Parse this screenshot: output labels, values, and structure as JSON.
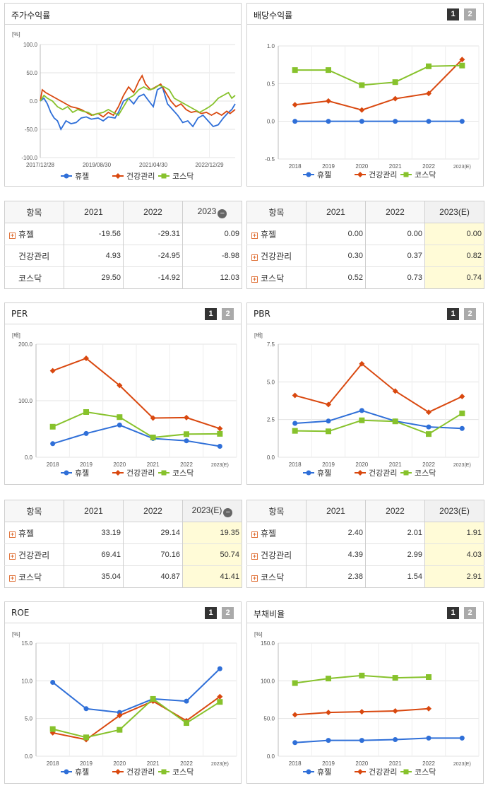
{
  "legend": [
    "휴젤",
    "건강관리",
    "코스닥"
  ],
  "colors": [
    "#2f6fd8",
    "#d9480f",
    "#87c22c"
  ],
  "panels": {
    "stock": {
      "title": "주가수익률"
    },
    "dividend": {
      "title": "배당수익률",
      "pages": [
        "1",
        "2"
      ]
    },
    "per": {
      "title": "PER",
      "pages": [
        "1",
        "2"
      ]
    },
    "pbr": {
      "title": "PBR",
      "pages": [
        "1",
        "2"
      ]
    },
    "roe": {
      "title": "ROE",
      "pages": [
        "1",
        "2"
      ]
    },
    "debt": {
      "title": "부채비율",
      "pages": [
        "1",
        "2"
      ]
    }
  },
  "tables": {
    "stock": {
      "header": [
        "항목",
        "2021",
        "2022",
        "2023"
      ],
      "minus": "−",
      "rows": [
        {
          "name": "휴젤",
          "plus": "+",
          "values": [
            "-19.56",
            "-29.31",
            "0.09"
          ]
        },
        {
          "name": "건강관리",
          "plus": "",
          "values": [
            "4.93",
            "-24.95",
            "-8.98"
          ]
        },
        {
          "name": "코스닥",
          "plus": "",
          "values": [
            "29.50",
            "-14.92",
            "12.03"
          ]
        }
      ]
    },
    "dividend": {
      "header": [
        "항목",
        "2021",
        "2022",
        "2023(E)"
      ],
      "rows": [
        {
          "name": "휴젤",
          "plus": "+",
          "values": [
            "0.00",
            "0.00",
            "0.00"
          ]
        },
        {
          "name": "건강관리",
          "plus": "+",
          "values": [
            "0.30",
            "0.37",
            "0.82"
          ]
        },
        {
          "name": "코스닥",
          "plus": "+",
          "values": [
            "0.52",
            "0.73",
            "0.74"
          ]
        }
      ]
    },
    "per": {
      "header": [
        "항목",
        "2021",
        "2022",
        "2023(E)"
      ],
      "minus": "−",
      "rows": [
        {
          "name": "휴젤",
          "plus": "+",
          "values": [
            "33.19",
            "29.14",
            "19.35"
          ]
        },
        {
          "name": "건강관리",
          "plus": "+",
          "values": [
            "69.41",
            "70.16",
            "50.74"
          ]
        },
        {
          "name": "코스닥",
          "plus": "+",
          "values": [
            "35.04",
            "40.87",
            "41.41"
          ]
        }
      ]
    },
    "pbr": {
      "header": [
        "항목",
        "2021",
        "2022",
        "2023(E)"
      ],
      "rows": [
        {
          "name": "휴젤",
          "plus": "+",
          "values": [
            "2.40",
            "2.01",
            "1.91"
          ]
        },
        {
          "name": "건강관리",
          "plus": "+",
          "values": [
            "4.39",
            "2.99",
            "4.03"
          ]
        },
        {
          "name": "코스닥",
          "plus": "+",
          "values": [
            "2.38",
            "1.54",
            "2.91"
          ]
        }
      ]
    }
  },
  "chart_data": [
    {
      "id": "stock",
      "type": "line",
      "title": "주가수익률",
      "ylabel": "[%]",
      "ylim": [
        -100,
        100
      ],
      "yticks": [
        "100.0",
        "50.0",
        "0.0",
        "-50.0",
        "-100.0"
      ],
      "xticks": [
        "2017/12/28",
        "2019/08/30",
        "2021/04/30",
        "2022/12/29"
      ],
      "x_span_years": [
        2017.99,
        2023.75
      ],
      "xtick_years": [
        2017.99,
        2019.66,
        2021.33,
        2022.99
      ],
      "series": [
        {
          "name": "휴젤",
          "points": [
            [
              2017.99,
              0
            ],
            [
              2018.1,
              5
            ],
            [
              2018.2,
              -5
            ],
            [
              2018.3,
              -20
            ],
            [
              2018.4,
              -30
            ],
            [
              2018.5,
              -35
            ],
            [
              2018.6,
              -50
            ],
            [
              2018.75,
              -35
            ],
            [
              2018.9,
              -40
            ],
            [
              2019.05,
              -38
            ],
            [
              2019.2,
              -30
            ],
            [
              2019.35,
              -28
            ],
            [
              2019.5,
              -32
            ],
            [
              2019.7,
              -30
            ],
            [
              2019.85,
              -35
            ],
            [
              2020.0,
              -28
            ],
            [
              2020.2,
              -30
            ],
            [
              2020.3,
              -20
            ],
            [
              2020.45,
              0
            ],
            [
              2020.6,
              5
            ],
            [
              2020.75,
              -5
            ],
            [
              2020.9,
              8
            ],
            [
              2021.05,
              12
            ],
            [
              2021.2,
              0
            ],
            [
              2021.33,
              -10
            ],
            [
              2021.45,
              20
            ],
            [
              2021.6,
              25
            ],
            [
              2021.75,
              -5
            ],
            [
              2021.9,
              -15
            ],
            [
              2022.05,
              -25
            ],
            [
              2022.2,
              -38
            ],
            [
              2022.35,
              -35
            ],
            [
              2022.5,
              -45
            ],
            [
              2022.65,
              -30
            ],
            [
              2022.8,
              -25
            ],
            [
              2022.95,
              -35
            ],
            [
              2023.1,
              -45
            ],
            [
              2023.25,
              -42
            ],
            [
              2023.4,
              -30
            ],
            [
              2023.55,
              -20
            ],
            [
              2023.65,
              -15
            ],
            [
              2023.75,
              -5
            ]
          ]
        },
        {
          "name": "건강관리",
          "points": [
            [
              2017.99,
              0
            ],
            [
              2018.05,
              20
            ],
            [
              2018.15,
              15
            ],
            [
              2018.3,
              10
            ],
            [
              2018.45,
              5
            ],
            [
              2018.6,
              0
            ],
            [
              2018.75,
              -5
            ],
            [
              2018.9,
              -10
            ],
            [
              2019.05,
              -12
            ],
            [
              2019.2,
              -15
            ],
            [
              2019.35,
              -20
            ],
            [
              2019.5,
              -25
            ],
            [
              2019.7,
              -22
            ],
            [
              2019.85,
              -28
            ],
            [
              2020.0,
              -20
            ],
            [
              2020.15,
              -25
            ],
            [
              2020.3,
              -10
            ],
            [
              2020.45,
              10
            ],
            [
              2020.6,
              25
            ],
            [
              2020.75,
              15
            ],
            [
              2020.9,
              35
            ],
            [
              2021.0,
              45
            ],
            [
              2021.1,
              30
            ],
            [
              2021.25,
              20
            ],
            [
              2021.4,
              25
            ],
            [
              2021.55,
              30
            ],
            [
              2021.7,
              15
            ],
            [
              2021.85,
              0
            ],
            [
              2022.0,
              -10
            ],
            [
              2022.15,
              -5
            ],
            [
              2022.3,
              -15
            ],
            [
              2022.45,
              -20
            ],
            [
              2022.6,
              -18
            ],
            [
              2022.75,
              -22
            ],
            [
              2022.9,
              -20
            ],
            [
              2023.05,
              -25
            ],
            [
              2023.2,
              -20
            ],
            [
              2023.35,
              -25
            ],
            [
              2023.5,
              -18
            ],
            [
              2023.6,
              -22
            ],
            [
              2023.75,
              -15
            ]
          ]
        },
        {
          "name": "코스닥",
          "points": [
            [
              2017.99,
              0
            ],
            [
              2018.1,
              10
            ],
            [
              2018.2,
              5
            ],
            [
              2018.35,
              0
            ],
            [
              2018.5,
              -10
            ],
            [
              2018.65,
              -15
            ],
            [
              2018.8,
              -10
            ],
            [
              2018.95,
              -20
            ],
            [
              2019.1,
              -15
            ],
            [
              2019.25,
              -18
            ],
            [
              2019.4,
              -20
            ],
            [
              2019.55,
              -25
            ],
            [
              2019.7,
              -22
            ],
            [
              2019.85,
              -20
            ],
            [
              2020.0,
              -15
            ],
            [
              2020.15,
              -20
            ],
            [
              2020.3,
              -25
            ],
            [
              2020.45,
              -10
            ],
            [
              2020.6,
              5
            ],
            [
              2020.75,
              10
            ],
            [
              2020.9,
              20
            ],
            [
              2021.05,
              25
            ],
            [
              2021.2,
              20
            ],
            [
              2021.35,
              22
            ],
            [
              2021.5,
              28
            ],
            [
              2021.65,
              25
            ],
            [
              2021.8,
              20
            ],
            [
              2021.95,
              5
            ],
            [
              2022.1,
              0
            ],
            [
              2022.25,
              -5
            ],
            [
              2022.4,
              -10
            ],
            [
              2022.55,
              -15
            ],
            [
              2022.7,
              -20
            ],
            [
              2022.85,
              -15
            ],
            [
              2022.99,
              -10
            ],
            [
              2023.1,
              -5
            ],
            [
              2023.25,
              5
            ],
            [
              2023.4,
              10
            ],
            [
              2023.55,
              15
            ],
            [
              2023.65,
              5
            ],
            [
              2023.75,
              10
            ]
          ]
        }
      ]
    },
    {
      "id": "dividend",
      "type": "line",
      "title": "배당수익률",
      "ylabel": "",
      "ylim": [
        -0.5,
        1.0
      ],
      "yticks": [
        "1.0",
        "0.5",
        "0.0",
        "-0.5"
      ],
      "categories": [
        "2018",
        "2019",
        "2020",
        "2021",
        "2022",
        "2023(E)"
      ],
      "series": [
        {
          "name": "휴젤",
          "values": [
            0.0,
            0.0,
            0.0,
            0.0,
            0.0,
            0.0
          ]
        },
        {
          "name": "건강관리",
          "values": [
            0.22,
            0.27,
            0.15,
            0.3,
            0.37,
            0.82
          ]
        },
        {
          "name": "코스닥",
          "values": [
            0.68,
            0.68,
            0.48,
            0.52,
            0.73,
            0.74
          ]
        }
      ]
    },
    {
      "id": "per",
      "type": "line",
      "title": "PER",
      "ylabel": "[배]",
      "ylim": [
        0,
        200
      ],
      "yticks": [
        "200.0",
        "100.0",
        "0.0"
      ],
      "categories": [
        "2018",
        "2019",
        "2020",
        "2021",
        "2022",
        "2023(E)"
      ],
      "series": [
        {
          "name": "휴젤",
          "values": [
            24,
            42,
            57,
            33.19,
            29.14,
            19.35
          ]
        },
        {
          "name": "건강관리",
          "values": [
            153,
            175,
            127,
            69.41,
            70.16,
            50.74
          ]
        },
        {
          "name": "코스닥",
          "values": [
            54,
            80,
            71,
            35.04,
            40.87,
            41.41
          ]
        }
      ]
    },
    {
      "id": "pbr",
      "type": "line",
      "title": "PBR",
      "ylabel": "[배]",
      "ylim": [
        0,
        7.5
      ],
      "yticks": [
        "7.5",
        "5.0",
        "2.5",
        "0.0"
      ],
      "categories": [
        "2018",
        "2019",
        "2020",
        "2021",
        "2022",
        "2023(E)"
      ],
      "series": [
        {
          "name": "휴젤",
          "values": [
            2.25,
            2.4,
            3.1,
            2.4,
            2.01,
            1.91
          ]
        },
        {
          "name": "건강관리",
          "values": [
            4.1,
            3.5,
            6.2,
            4.39,
            2.99,
            4.03
          ]
        },
        {
          "name": "코스닥",
          "values": [
            1.75,
            1.72,
            2.45,
            2.38,
            1.54,
            2.91
          ]
        }
      ]
    },
    {
      "id": "roe",
      "type": "line",
      "title": "ROE",
      "ylabel": "[%]",
      "ylim": [
        0,
        15
      ],
      "yticks": [
        "15.0",
        "10.0",
        "5.0",
        "0.0"
      ],
      "categories": [
        "2018",
        "2019",
        "2020",
        "2021",
        "2022",
        "2023(E)"
      ],
      "series": [
        {
          "name": "휴젤",
          "values": [
            9.8,
            6.3,
            5.8,
            7.6,
            7.3,
            11.6
          ]
        },
        {
          "name": "건강관리",
          "values": [
            3.1,
            2.2,
            5.4,
            7.3,
            4.7,
            7.9
          ]
        },
        {
          "name": "코스닥",
          "values": [
            3.6,
            2.5,
            3.5,
            7.6,
            4.4,
            7.2
          ]
        }
      ]
    },
    {
      "id": "debt",
      "type": "line",
      "title": "부채비율",
      "ylabel": "[%]",
      "ylim": [
        0,
        150
      ],
      "yticks": [
        "150.0",
        "100.0",
        "50.0",
        "0.0"
      ],
      "categories": [
        "2018",
        "2019",
        "2020",
        "2021",
        "2022",
        "2023(E)"
      ],
      "series": [
        {
          "name": "휴젤",
          "values": [
            18,
            21,
            21,
            22,
            24,
            24
          ]
        },
        {
          "name": "건강관리",
          "values": [
            55,
            58,
            59,
            60,
            63,
            null
          ]
        },
        {
          "name": "코스닥",
          "values": [
            97,
            103,
            107,
            104,
            105,
            null
          ]
        }
      ]
    }
  ]
}
